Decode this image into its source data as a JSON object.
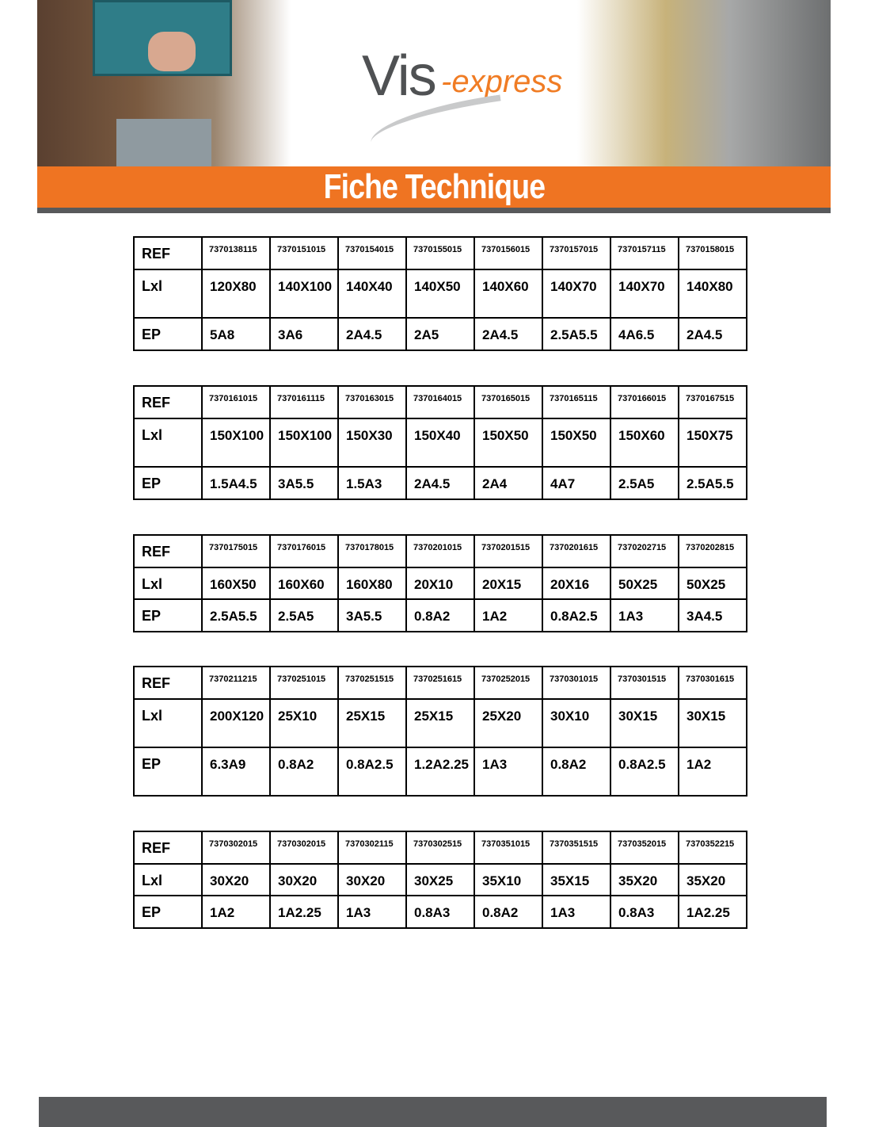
{
  "header": {
    "logo_main": "Vis",
    "logo_suffix": "-express",
    "title": "Fiche Technique"
  },
  "colors": {
    "accent": "#ef7422",
    "dark_gray": "#58595b"
  },
  "row_labels": {
    "ref": "REF",
    "lxl": "Lxl",
    "ep": "EP"
  },
  "tables": [
    {
      "ref": [
        "7370138115",
        "7370151015",
        "7370154015",
        "7370155015",
        "7370156015",
        "7370157015",
        "7370157115",
        "7370158015"
      ],
      "lxl": [
        "120X80",
        "140X100",
        "140X40",
        "140X50",
        "140X60",
        "140X70",
        "140X70",
        "140X80"
      ],
      "ep": [
        "5A8",
        "3A6",
        "2A4.5",
        "2A5",
        "2A4.5",
        "2.5A5.5",
        "4A6.5",
        "2A4.5"
      ]
    },
    {
      "ref": [
        "7370161015",
        "7370161115",
        "7370163015",
        "7370164015",
        "7370165015",
        "7370165115",
        "7370166015",
        "7370167515"
      ],
      "lxl": [
        "150X100",
        "150X100",
        "150X30",
        "150X40",
        "150X50",
        "150X50",
        "150X60",
        "150X75"
      ],
      "ep": [
        "1.5A4.5",
        "3A5.5",
        "1.5A3",
        "2A4.5",
        "2A4",
        "4A7",
        "2.5A5",
        "2.5A5.5"
      ]
    },
    {
      "ref": [
        "7370175015",
        "7370176015",
        "7370178015",
        "7370201015",
        "7370201515",
        "7370201615",
        "7370202715",
        "7370202815"
      ],
      "lxl": [
        "160X50",
        "160X60",
        "160X80",
        "20X10",
        "20X15",
        "20X16",
        "50X25",
        "50X25"
      ],
      "ep": [
        "2.5A5.5",
        "2.5A5",
        "3A5.5",
        "0.8A2",
        "1A2",
        "0.8A2.5",
        "1A3",
        "3A4.5"
      ]
    },
    {
      "ref": [
        "7370211215",
        "7370251015",
        "7370251515",
        "7370251615",
        "7370252015",
        "7370301015",
        "7370301515",
        "7370301615"
      ],
      "lxl": [
        "200X120",
        "25X10",
        "25X15",
        "25X15",
        "25X20",
        "30X10",
        "30X15",
        "30X15"
      ],
      "ep": [
        "6.3A9",
        "0.8A2",
        "0.8A2.5",
        "1.2A2.25",
        "1A3",
        "0.8A2",
        "0.8A2.5",
        "1A2"
      ]
    },
    {
      "ref": [
        "7370302015",
        "7370302015",
        "7370302115",
        "7370302515",
        "7370351015",
        "7370351515",
        "7370352015",
        "7370352215"
      ],
      "lxl": [
        "30X20",
        "30X20",
        "30X20",
        "30X25",
        "35X10",
        "35X15",
        "35X20",
        "35X20"
      ],
      "ep": [
        "1A2",
        "1A2.25",
        "1A3",
        "0.8A3",
        "0.8A2",
        "1A3",
        "0.8A3",
        "1A2.25"
      ]
    }
  ]
}
